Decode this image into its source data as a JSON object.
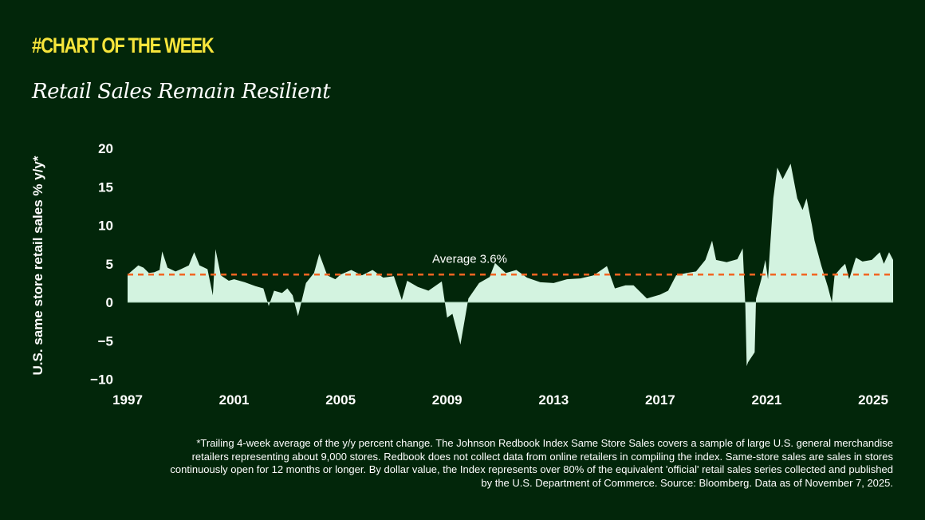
{
  "header": {
    "kicker": "#CHART OF THE WEEK",
    "title": "Retail Sales Remain Resilient"
  },
  "colors": {
    "background": "#02260a",
    "kicker": "#f7e53b",
    "area": "#d3f3e0",
    "average_line": "#f26522"
  },
  "chart_data": {
    "type": "area",
    "title": "",
    "xlabel": "",
    "ylabel": "U.S. same store retail sales % y/y*",
    "xlim": [
      1997,
      2025.8
    ],
    "ylim": [
      -10,
      20
    ],
    "x_ticks": [
      "1997",
      "2001",
      "2005",
      "2009",
      "2013",
      "2017",
      "2021",
      "2025"
    ],
    "y_ticks": [
      "20",
      "15",
      "10",
      "5",
      "0",
      "−5",
      "−10"
    ],
    "grid": false,
    "average": {
      "value": 3.6,
      "label": "Average 3.6%",
      "style": "dashed"
    },
    "x": [
      1997.0,
      1997.2,
      1997.4,
      1997.6,
      1997.8,
      1998.0,
      1998.2,
      1998.3,
      1998.5,
      1998.8,
      1999.0,
      1999.3,
      1999.5,
      1999.7,
      2000.0,
      2000.2,
      2000.3,
      2000.5,
      2000.8,
      2001.0,
      2001.4,
      2001.8,
      2002.1,
      2002.3,
      2002.5,
      2002.8,
      2003.0,
      2003.2,
      2003.4,
      2003.7,
      2004.0,
      2004.2,
      2004.5,
      2004.8,
      2005.0,
      2005.4,
      2005.8,
      2006.2,
      2006.6,
      2007.0,
      2007.3,
      2007.5,
      2007.9,
      2008.3,
      2008.8,
      2009.0,
      2009.2,
      2009.5,
      2009.8,
      2010.2,
      2010.6,
      2010.8,
      2011.2,
      2011.6,
      2012.0,
      2012.5,
      2013.0,
      2013.5,
      2014.0,
      2014.5,
      2015.0,
      2015.3,
      2015.7,
      2016.0,
      2016.5,
      2017.0,
      2017.3,
      2017.6,
      2018.0,
      2018.35,
      2018.7,
      2018.95,
      2019.1,
      2019.5,
      2019.9,
      2020.1,
      2020.2,
      2020.25,
      2020.3,
      2020.55,
      2020.6,
      2020.8,
      2020.95,
      2021.05,
      2021.25,
      2021.4,
      2021.6,
      2021.9,
      2022.15,
      2022.35,
      2022.5,
      2022.7,
      2022.8,
      2023.05,
      2023.3,
      2023.45,
      2023.55,
      2023.8,
      2023.95,
      2024.1,
      2024.35,
      2024.6,
      2024.95,
      2025.25,
      2025.4,
      2025.6,
      2025.75
    ],
    "y": [
      3.6,
      4.2,
      4.8,
      4.5,
      3.8,
      3.9,
      4.2,
      6.6,
      4.5,
      4.0,
      4.3,
      4.8,
      6.5,
      4.8,
      4.3,
      0.9,
      6.9,
      3.5,
      2.8,
      3.0,
      2.6,
      2.1,
      1.8,
      -0.5,
      1.5,
      1.2,
      1.8,
      0.9,
      -1.8,
      2.5,
      3.8,
      6.3,
      3.5,
      3.0,
      3.6,
      4.2,
      3.5,
      4.2,
      3.2,
      3.4,
      0.3,
      2.8,
      2.0,
      1.5,
      2.7,
      -2.0,
      -1.5,
      -5.5,
      0.5,
      2.5,
      3.3,
      5.1,
      3.8,
      4.2,
      3.2,
      2.6,
      2.5,
      3.0,
      3.1,
      3.5,
      4.7,
      1.8,
      2.2,
      2.2,
      0.5,
      1.0,
      1.5,
      3.5,
      3.8,
      4.0,
      5.5,
      8.0,
      5.5,
      5.2,
      5.6,
      7.0,
      -0.5,
      -8.3,
      -7.8,
      -6.5,
      0.5,
      3.0,
      5.5,
      3.0,
      13.5,
      17.5,
      16.0,
      18.0,
      13.5,
      12.0,
      13.5,
      10.0,
      8.0,
      4.8,
      2.0,
      0.0,
      3.5,
      4.5,
      5.0,
      3.0,
      5.8,
      5.3,
      5.5,
      6.5,
      5.0,
      6.5,
      5.5
    ]
  },
  "footnote": "*Trailing 4-week average of the y/y percent change. The Johnson Redbook Index Same Store Sales covers a sample of large U.S. general merchandise retailers representing about 9,000 stores. Redbook does not collect data from online retailers in compiling the index. Same-store sales are sales in stores continuously open for 12 months or longer. By dollar value, the Index represents over 80% of the equivalent 'official' retail sales series collected and published by the U.S. Department of Commerce. Source: Bloomberg. Data as of November 7, 2025."
}
